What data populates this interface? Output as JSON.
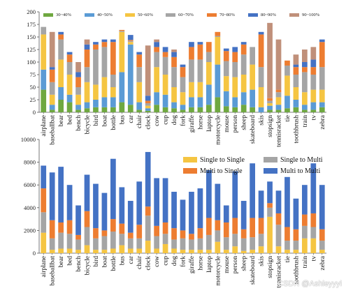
{
  "chart_data": [
    {
      "type": "stacked_bar",
      "categories": [
        "airplane",
        "baseballbat",
        "bear",
        "bed",
        "bench",
        "bicycle",
        "bird",
        "boat",
        "bottle",
        "bus",
        "car",
        "chair",
        "clock",
        "cow",
        "cup",
        "dog",
        "fork",
        "giraffe",
        "horse",
        "laptop",
        "motorcycle",
        "mouse",
        "person",
        "sheep",
        "skateboard",
        "skis",
        "stopsign",
        "tennisracket",
        "tie",
        "toothbrush",
        "train",
        "tv",
        "zebra"
      ],
      "ylim": [
        0,
        200
      ],
      "yticks": [
        0,
        25,
        50,
        75,
        100,
        125,
        150,
        175,
        200
      ],
      "legend_position": "top",
      "series": [
        {
          "name": "30~40%",
          "color": "#6fa840",
          "values": [
            45,
            5,
            25,
            20,
            5,
            8,
            10,
            10,
            10,
            20,
            15,
            5,
            3,
            15,
            10,
            8,
            5,
            10,
            10,
            15,
            30,
            12,
            10,
            15,
            10,
            0,
            5,
            5,
            8,
            10,
            5,
            5,
            10
          ]
        },
        {
          "name": "40~50%",
          "color": "#5b9bd5",
          "values": [
            40,
            10,
            25,
            15,
            10,
            12,
            15,
            20,
            20,
            60,
            120,
            15,
            5,
            25,
            25,
            12,
            10,
            20,
            20,
            40,
            65,
            30,
            20,
            25,
            35,
            10,
            8,
            10,
            25,
            15,
            10,
            15,
            10
          ]
        },
        {
          "name": "50~60%",
          "color": "#f5c542",
          "values": [
            70,
            20,
            55,
            40,
            20,
            40,
            30,
            40,
            20,
            80,
            5,
            40,
            5,
            50,
            40,
            30,
            25,
            30,
            30,
            45,
            55,
            30,
            40,
            35,
            50,
            40,
            5,
            15,
            40,
            25,
            25,
            25,
            25
          ]
        },
        {
          "name": "60~70%",
          "color": "#a5a5a5",
          "values": [
            15,
            25,
            40,
            25,
            15,
            30,
            70,
            60,
            25,
            2,
            2,
            30,
            5,
            30,
            35,
            40,
            30,
            45,
            45,
            20,
            2,
            30,
            30,
            40,
            35,
            40,
            5,
            10,
            20,
            25,
            40,
            30,
            45
          ]
        },
        {
          "name": "70~80%",
          "color": "#ed7d31",
          "values": [
            0,
            25,
            10,
            15,
            20,
            35,
            10,
            10,
            65,
            2,
            2,
            25,
            5,
            10,
            10,
            20,
            20,
            25,
            30,
            20,
            8,
            20,
            20,
            20,
            0,
            65,
            5,
            5,
            10,
            15,
            10,
            15,
            50
          ]
        },
        {
          "name": "80~90%",
          "color": "#4472c4",
          "values": [
            0,
            5,
            5,
            5,
            10,
            10,
            5,
            5,
            5,
            0,
            10,
            5,
            10,
            10,
            10,
            10,
            5,
            10,
            5,
            0,
            0,
            5,
            10,
            5,
            0,
            5,
            0,
            0,
            0,
            5,
            10,
            15,
            5
          ]
        },
        {
          "name": "90~100%",
          "color": "#c0907a",
          "values": [
            0,
            70,
            0,
            0,
            20,
            10,
            0,
            0,
            0,
            0,
            0,
            0,
            100,
            5,
            0,
            5,
            0,
            0,
            0,
            0,
            0,
            0,
            0,
            0,
            0,
            0,
            150,
            100,
            0,
            20,
            25,
            25,
            0
          ]
        }
      ]
    },
    {
      "type": "stacked_bar",
      "categories": [
        "airplane",
        "baseballbat",
        "bear",
        "bed",
        "bench",
        "bicycle",
        "bird",
        "boat",
        "bottle",
        "bus",
        "car",
        "chair",
        "clock",
        "cow",
        "cup",
        "dog",
        "fork",
        "giraffe",
        "horse",
        "laptop",
        "motorcycle",
        "mouse",
        "person",
        "sheep",
        "skateboard",
        "skis",
        "stopsign",
        "tennisracket",
        "tie",
        "toothbrush",
        "train",
        "tv",
        "zebra"
      ],
      "ylim": [
        0,
        10000
      ],
      "yticks": [
        0,
        2000,
        4000,
        6000,
        8000,
        10000
      ],
      "legend_position": "top-right",
      "series": [
        {
          "name": "Single to Single",
          "color": "#f5c542",
          "values": [
            1800,
            300,
            400,
            400,
            300,
            700,
            300,
            300,
            400,
            700,
            400,
            400,
            1100,
            400,
            800,
            400,
            300,
            300,
            300,
            300,
            1000,
            300,
            600,
            200,
            300,
            600,
            3200,
            600,
            300,
            300,
            1300,
            1300,
            300
          ]
        },
        {
          "name": "Single to Multi",
          "color": "#a5a5a5",
          "values": [
            1800,
            1000,
            1400,
            1300,
            900,
            1600,
            1000,
            1200,
            1500,
            1000,
            900,
            900,
            2200,
            1100,
            900,
            800,
            1000,
            900,
            1000,
            1300,
            1000,
            1100,
            1100,
            1100,
            1100,
            1100,
            800,
            1900,
            800,
            800,
            1100,
            1000,
            800
          ]
        },
        {
          "name": "Multi to Single",
          "color": "#ed7d31",
          "values": [
            2100,
            1600,
            900,
            1200,
            400,
            1400,
            900,
            500,
            1100,
            900,
            500,
            1200,
            800,
            900,
            1000,
            1000,
            700,
            500,
            900,
            1500,
            900,
            1300,
            1400,
            800,
            1700,
            1400,
            400,
            1000,
            1200,
            1000,
            1000,
            1200,
            1000
          ]
        },
        {
          "name": "Multi to Multi",
          "color": "#4472c4",
          "values": [
            2000,
            4200,
            4900,
            3100,
            2600,
            3200,
            3900,
            3300,
            5300,
            3200,
            2800,
            3800,
            4800,
            4200,
            3900,
            3200,
            2700,
            3700,
            3500,
            4200,
            3200,
            1500,
            4100,
            2500,
            4800,
            2400,
            1900,
            2000,
            4400,
            2700,
            2600,
            4400,
            3900
          ]
        }
      ]
    }
  ]
}
